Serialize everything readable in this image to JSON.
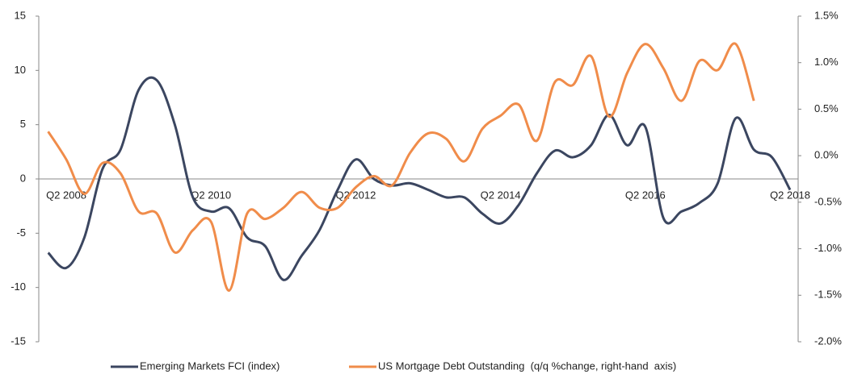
{
  "chart_data": {
    "type": "line",
    "categories": [
      null,
      "Q2 2008",
      null,
      null,
      null,
      null,
      null,
      null,
      null,
      "Q2 2010",
      null,
      null,
      null,
      null,
      null,
      null,
      null,
      "Q2 2012",
      null,
      null,
      null,
      null,
      null,
      null,
      null,
      "Q2 2014",
      null,
      null,
      null,
      null,
      null,
      null,
      null,
      "Q2 2016",
      null,
      null,
      null,
      null,
      null,
      null,
      null,
      "Q2 2018"
    ],
    "series": [
      {
        "name": "Emerging Markets FCI (index)",
        "color": "#3b4660",
        "values": [
          -6.8,
          -8.2,
          -5.4,
          0.9,
          2.7,
          8.2,
          9.1,
          5.0,
          -1.7,
          -3.0,
          -2.7,
          -5.4,
          -6.2,
          -9.3,
          -7.1,
          -4.7,
          -1.0,
          1.8,
          0,
          -0.6,
          -0.4,
          -1.0,
          -1.7,
          -1.7,
          -3.2,
          -4.1,
          -2.4,
          0.5,
          2.6,
          2.0,
          3.1,
          5.9,
          3.1,
          4.8,
          -3.6,
          -3.0,
          -2.2,
          -0.4,
          5.6,
          2.7,
          2.0,
          -1.0
        ]
      },
      {
        "name": "US Mortgage Debt Outstanding  (q/q %change, right-hand  axis)",
        "color": "#f08c4a",
        "axis": "y2",
        "values": [
          0.26,
          -0.04,
          -0.41,
          -0.08,
          -0.19,
          -0.6,
          -0.62,
          -1.04,
          -0.8,
          -0.71,
          -1.45,
          -0.62,
          -0.68,
          -0.56,
          -0.39,
          -0.56,
          -0.56,
          -0.34,
          -0.22,
          -0.32,
          0.03,
          0.24,
          0.18,
          -0.06,
          0.29,
          0.43,
          0.55,
          0.16,
          0.79,
          0.76,
          1.07,
          0.42,
          0.89,
          1.2,
          0.94,
          0.59,
          1.02,
          0.92,
          1.2,
          0.59,
          null,
          null
        ]
      }
    ],
    "ylim": [
      -15,
      15
    ],
    "yticks": [
      -15,
      -10,
      -5,
      0,
      5,
      10,
      15
    ],
    "y2lim": [
      -2.0,
      1.5
    ],
    "y2ticks": [
      {
        "value": -2.0,
        "label": "-2.0%"
      },
      {
        "value": -1.5,
        "label": "-1.5%"
      },
      {
        "value": -1.0,
        "label": "-1.0%"
      },
      {
        "value": -0.5,
        "label": "-0.5%"
      },
      {
        "value": 0,
        "label": "0.0%"
      },
      {
        "value": 0.5,
        "label": "0.5%"
      },
      {
        "value": 1.0,
        "label": "1.0%"
      },
      {
        "value": 1.5,
        "label": "1.5%"
      }
    ],
    "legend": "bottom"
  }
}
